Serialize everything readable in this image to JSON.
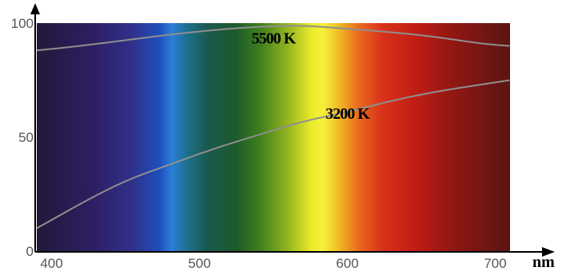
{
  "chart_data": {
    "type": "line",
    "title": "",
    "xlabel": "nm",
    "ylabel": "",
    "xlim": [
      390,
      710
    ],
    "ylim": [
      0,
      100
    ],
    "x_ticks": [
      400,
      500,
      600,
      700
    ],
    "y_ticks": [
      0,
      50,
      100
    ],
    "background": "visible-spectrum-gradient",
    "grid": false,
    "legend": "none",
    "series": [
      {
        "name": "5500 K",
        "color": "#8f8f8f",
        "label_at": [
          550,
          91
        ],
        "x": [
          390,
          420,
          450,
          480,
          510,
          540,
          570,
          600,
          630,
          660,
          690,
          710
        ],
        "y": [
          88,
          90,
          92.5,
          95,
          97,
          98.5,
          99,
          97.5,
          96,
          94,
          91,
          90
        ]
      },
      {
        "name": "3200 K",
        "color": "#8f8f8f",
        "label_at": [
          600,
          58
        ],
        "x": [
          390,
          420,
          450,
          480,
          510,
          540,
          570,
          600,
          630,
          660,
          690,
          710
        ],
        "y": [
          10,
          21,
          31,
          38,
          45,
          51,
          57,
          61,
          66,
          70,
          73,
          75
        ]
      }
    ]
  }
}
